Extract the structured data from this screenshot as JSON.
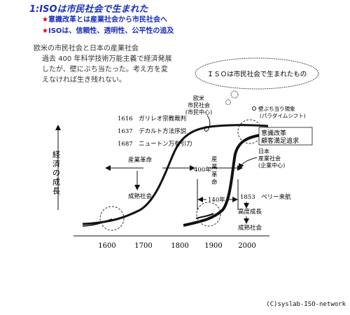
{
  "title": "1:ISOは市民社会で生まれた",
  "bullets": [
    "意識改革とは産業社会から市民社会へ",
    "ISOは、信頼性、透明性、公平性の追及"
  ],
  "bullet_mark": "★",
  "intro": {
    "heading": "欧米の市民社会と日本の産業社会",
    "body": [
      "過去 400 年科学技術万能主義で経済発展",
      "したが、壁にぶち当たった。考え方を変",
      "えなければ生き残れない。"
    ]
  },
  "bubble": "ＩＳＯは市民社会で生まれたもの",
  "diagram": {
    "y_axis_label": "経済の成長",
    "x_ticks": [
      "1600",
      "1700",
      "1800",
      "1900",
      "2000"
    ],
    "events": [
      "1616　ガリレオ宗教裁判",
      "1637　デカルト方法序説",
      "1687　ニュートン万有引力"
    ],
    "industrial_revolution_left": "産業革命",
    "mature_society_left": "成熟社会",
    "span_400": "400年",
    "western_civil": [
      "欧米",
      "市民社会",
      "(市民中心)"
    ],
    "wall_label": [
      "壁ぶち当り現象",
      "(パラダイムシフト)"
    ],
    "consciousness_reform": "意識改革",
    "customer_satisfaction": "顧客満足追求",
    "japan_industrial": [
      "日本",
      "産業社会",
      "(企業中心)"
    ],
    "industrial_revolution_right": [
      "産",
      "業",
      "革",
      "命"
    ],
    "span_140": "140年",
    "perry": "1853　ペリー来航",
    "high_growth": "高度成長",
    "mature_society_right": "成熟社会"
  },
  "copyright": "(C)syslab-ISO-network"
}
